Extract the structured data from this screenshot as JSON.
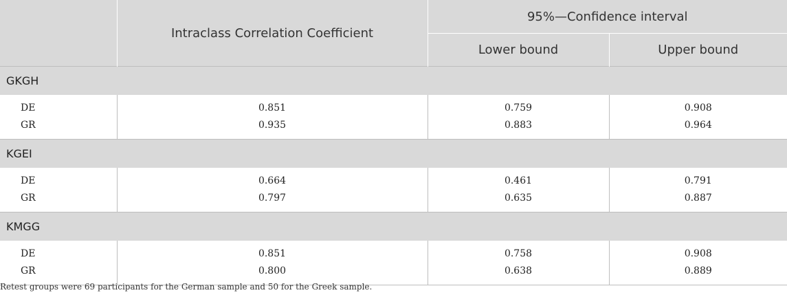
{
  "header": {
    "icc": "Intraclass Correlation Coefficient",
    "ci": "95%—Confidence interval",
    "lower": "Lower bound",
    "upper": "Upper bound"
  },
  "groups": [
    {
      "name": "GKGH",
      "rows": [
        {
          "label": "DE",
          "icc": "0.851",
          "lower": "0.759",
          "upper": "0.908"
        },
        {
          "label": "GR",
          "icc": "0.935",
          "lower": "0.883",
          "upper": "0.964"
        }
      ]
    },
    {
      "name": "KGEI",
      "rows": [
        {
          "label": "DE",
          "icc": "0.664",
          "lower": "0.461",
          "upper": "0.791"
        },
        {
          "label": "GR",
          "icc": "0.797",
          "lower": "0.635",
          "upper": "0.887"
        }
      ]
    },
    {
      "name": "KMGG",
      "rows": [
        {
          "label": "DE",
          "icc": "0.851",
          "lower": "0.758",
          "upper": "0.908"
        },
        {
          "label": "GR",
          "icc": "0.800",
          "lower": "0.638",
          "upper": "0.889"
        }
      ]
    }
  ],
  "footnote": "Retest groups were 69 participants for the German sample and 50 for the Greek sample."
}
